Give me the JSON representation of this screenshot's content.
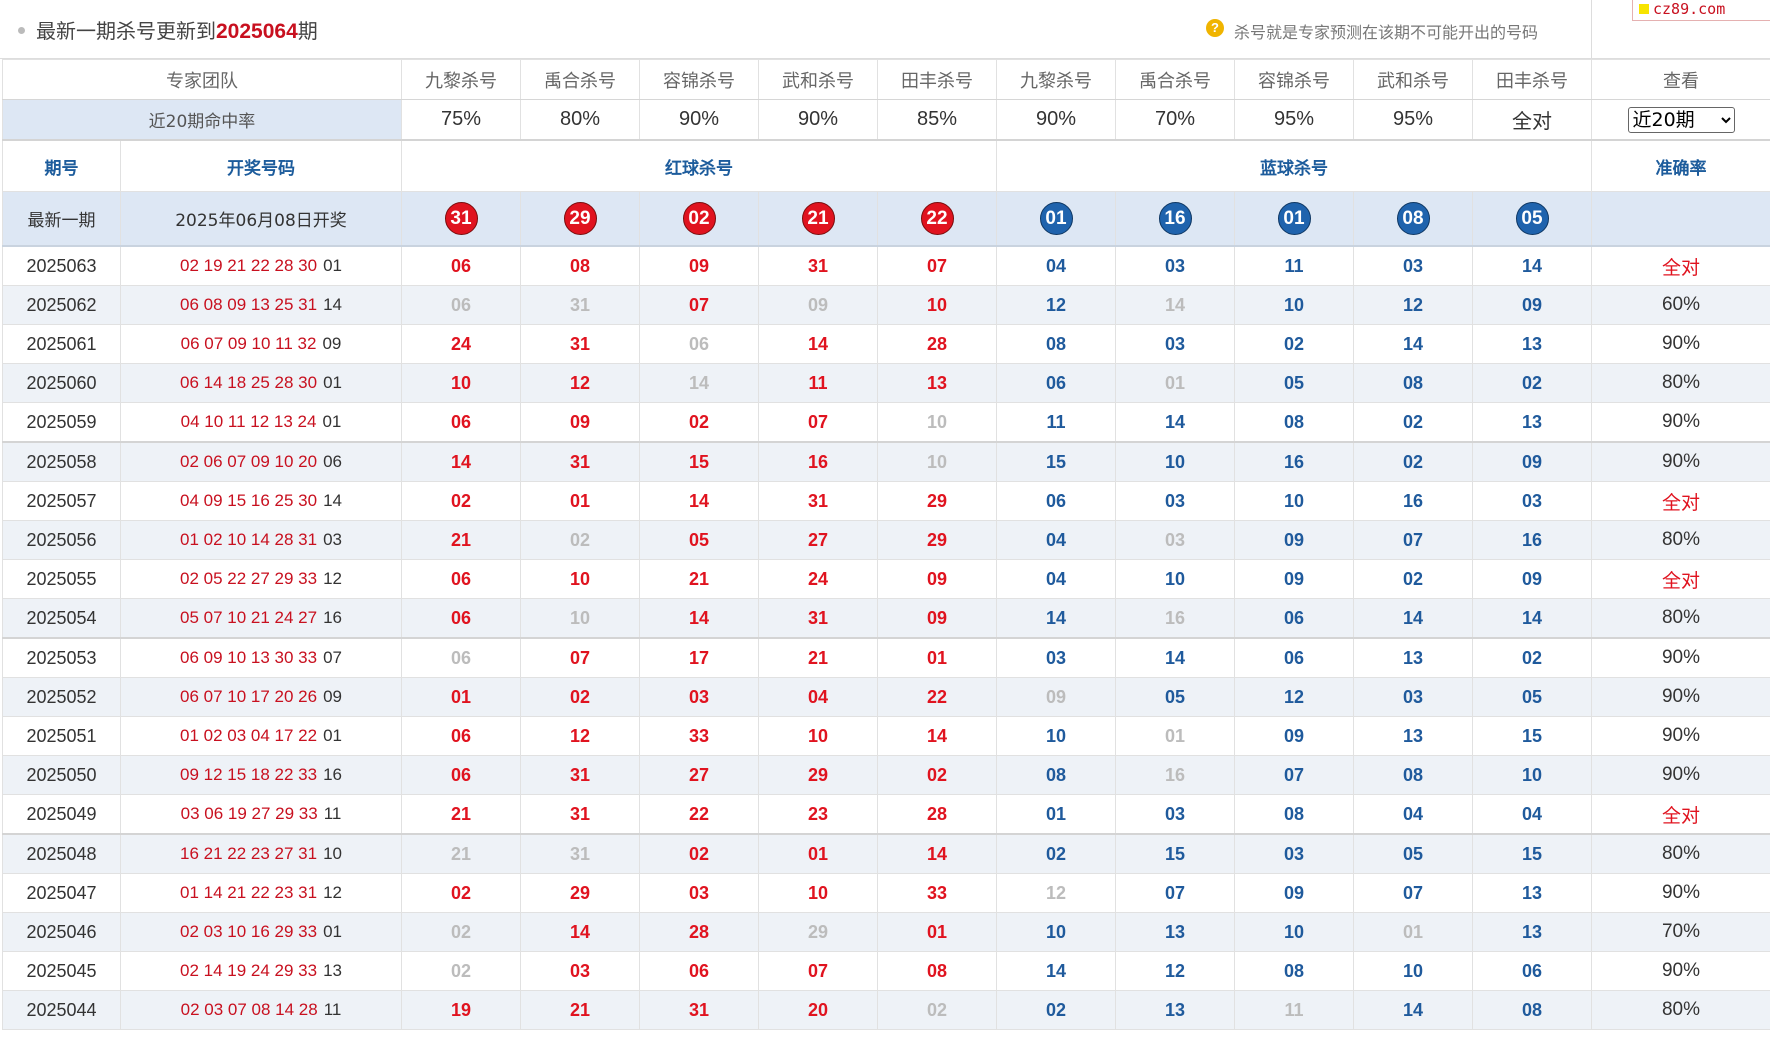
{
  "header": {
    "title_prefix": "最新一期杀号更新到",
    "title_issue": "2025064",
    "title_suffix": "期",
    "hint_icon": "question-circle-icon",
    "hint": "杀号就是专家预测在该期不可能开出的号码",
    "logo": "cz89.com"
  },
  "experts_label": "专家团队",
  "experts": [
    "九黎杀号",
    "禹合杀号",
    "容锦杀号",
    "武和杀号",
    "田丰杀号",
    "九黎杀号",
    "禹合杀号",
    "容锦杀号",
    "武和杀号",
    "田丰杀号"
  ],
  "view_label": "查看",
  "rate_label": "近20期命中率",
  "rates": [
    "75%",
    "80%",
    "90%",
    "90%",
    "85%",
    "90%",
    "70%",
    "95%",
    "95%",
    "全对"
  ],
  "period_select": {
    "value": "近20期",
    "options": [
      "近20期"
    ]
  },
  "columns": {
    "issue": "期号",
    "draw": "开奖号码",
    "red": "红球杀号",
    "blue": "蓝球杀号",
    "accuracy": "准确率"
  },
  "latest": {
    "label": "最新一期",
    "date": "2025年06月08日开奖",
    "red_kills": [
      "31",
      "29",
      "02",
      "21",
      "22"
    ],
    "blue_kills": [
      "01",
      "16",
      "01",
      "08",
      "05"
    ]
  },
  "rows": [
    {
      "issue": "2025063",
      "reds": "02 19 21 22 28 30",
      "blue": "01",
      "kills": [
        "06",
        "08",
        "09",
        "31",
        "07",
        "04",
        "03",
        "11",
        "03",
        "14"
      ],
      "hit": [
        1,
        1,
        1,
        1,
        1,
        1,
        1,
        1,
        1,
        1
      ],
      "accuracy": "全对"
    },
    {
      "issue": "2025062",
      "reds": "06 08 09 13 25 31",
      "blue": "14",
      "kills": [
        "06",
        "31",
        "07",
        "09",
        "10",
        "12",
        "14",
        "10",
        "12",
        "09"
      ],
      "hit": [
        0,
        0,
        1,
        0,
        1,
        1,
        0,
        1,
        1,
        1
      ],
      "accuracy": "60%"
    },
    {
      "issue": "2025061",
      "reds": "06 07 09 10 11 32",
      "blue": "09",
      "kills": [
        "24",
        "31",
        "06",
        "14",
        "28",
        "08",
        "03",
        "02",
        "14",
        "13"
      ],
      "hit": [
        1,
        1,
        0,
        1,
        1,
        1,
        1,
        1,
        1,
        1
      ],
      "accuracy": "90%"
    },
    {
      "issue": "2025060",
      "reds": "06 14 18 25 28 30",
      "blue": "01",
      "kills": [
        "10",
        "12",
        "14",
        "11",
        "13",
        "06",
        "01",
        "05",
        "08",
        "02"
      ],
      "hit": [
        1,
        1,
        0,
        1,
        1,
        1,
        0,
        1,
        1,
        1
      ],
      "accuracy": "80%"
    },
    {
      "issue": "2025059",
      "reds": "04 10 11 12 13 24",
      "blue": "01",
      "kills": [
        "06",
        "09",
        "02",
        "07",
        "10",
        "11",
        "14",
        "08",
        "02",
        "13"
      ],
      "hit": [
        1,
        1,
        1,
        1,
        0,
        1,
        1,
        1,
        1,
        1
      ],
      "accuracy": "90%"
    },
    {
      "issue": "2025058",
      "reds": "02 06 07 09 10 20",
      "blue": "06",
      "kills": [
        "14",
        "31",
        "15",
        "16",
        "10",
        "15",
        "10",
        "16",
        "02",
        "09"
      ],
      "hit": [
        1,
        1,
        1,
        1,
        0,
        1,
        1,
        1,
        1,
        1
      ],
      "accuracy": "90%"
    },
    {
      "issue": "2025057",
      "reds": "04 09 15 16 25 30",
      "blue": "14",
      "kills": [
        "02",
        "01",
        "14",
        "31",
        "29",
        "06",
        "03",
        "10",
        "16",
        "03"
      ],
      "hit": [
        1,
        1,
        1,
        1,
        1,
        1,
        1,
        1,
        1,
        1
      ],
      "accuracy": "全对"
    },
    {
      "issue": "2025056",
      "reds": "01 02 10 14 28 31",
      "blue": "03",
      "kills": [
        "21",
        "02",
        "05",
        "27",
        "29",
        "04",
        "03",
        "09",
        "07",
        "16"
      ],
      "hit": [
        1,
        0,
        1,
        1,
        1,
        1,
        0,
        1,
        1,
        1
      ],
      "accuracy": "80%"
    },
    {
      "issue": "2025055",
      "reds": "02 05 22 27 29 33",
      "blue": "12",
      "kills": [
        "06",
        "10",
        "21",
        "24",
        "09",
        "04",
        "10",
        "09",
        "02",
        "09"
      ],
      "hit": [
        1,
        1,
        1,
        1,
        1,
        1,
        1,
        1,
        1,
        1
      ],
      "accuracy": "全对"
    },
    {
      "issue": "2025054",
      "reds": "05 07 10 21 24 27",
      "blue": "16",
      "kills": [
        "06",
        "10",
        "14",
        "31",
        "09",
        "14",
        "16",
        "06",
        "14",
        "14"
      ],
      "hit": [
        1,
        0,
        1,
        1,
        1,
        1,
        0,
        1,
        1,
        1
      ],
      "accuracy": "80%"
    },
    {
      "issue": "2025053",
      "reds": "06 09 10 13 30 33",
      "blue": "07",
      "kills": [
        "06",
        "07",
        "17",
        "21",
        "01",
        "03",
        "14",
        "06",
        "13",
        "02"
      ],
      "hit": [
        0,
        1,
        1,
        1,
        1,
        1,
        1,
        1,
        1,
        1
      ],
      "accuracy": "90%"
    },
    {
      "issue": "2025052",
      "reds": "06 07 10 17 20 26",
      "blue": "09",
      "kills": [
        "01",
        "02",
        "03",
        "04",
        "22",
        "09",
        "05",
        "12",
        "03",
        "05"
      ],
      "hit": [
        1,
        1,
        1,
        1,
        1,
        0,
        1,
        1,
        1,
        1
      ],
      "accuracy": "90%"
    },
    {
      "issue": "2025051",
      "reds": "01 02 03 04 17 22",
      "blue": "01",
      "kills": [
        "06",
        "12",
        "33",
        "10",
        "14",
        "10",
        "01",
        "09",
        "13",
        "15"
      ],
      "hit": [
        1,
        1,
        1,
        1,
        1,
        1,
        0,
        1,
        1,
        1
      ],
      "accuracy": "90%"
    },
    {
      "issue": "2025050",
      "reds": "09 12 15 18 22 33",
      "blue": "16",
      "kills": [
        "06",
        "31",
        "27",
        "29",
        "02",
        "08",
        "16",
        "07",
        "08",
        "10"
      ],
      "hit": [
        1,
        1,
        1,
        1,
        1,
        1,
        0,
        1,
        1,
        1
      ],
      "accuracy": "90%"
    },
    {
      "issue": "2025049",
      "reds": "03 06 19 27 29 33",
      "blue": "11",
      "kills": [
        "21",
        "31",
        "22",
        "23",
        "28",
        "01",
        "03",
        "08",
        "04",
        "04"
      ],
      "hit": [
        1,
        1,
        1,
        1,
        1,
        1,
        1,
        1,
        1,
        1
      ],
      "accuracy": "全对"
    },
    {
      "issue": "2025048",
      "reds": "16 21 22 23 27 31",
      "blue": "10",
      "kills": [
        "21",
        "31",
        "02",
        "01",
        "14",
        "02",
        "15",
        "03",
        "05",
        "15"
      ],
      "hit": [
        0,
        0,
        1,
        1,
        1,
        1,
        1,
        1,
        1,
        1
      ],
      "accuracy": "80%"
    },
    {
      "issue": "2025047",
      "reds": "01 14 21 22 23 31",
      "blue": "12",
      "kills": [
        "02",
        "29",
        "03",
        "10",
        "33",
        "12",
        "07",
        "09",
        "07",
        "13"
      ],
      "hit": [
        1,
        1,
        1,
        1,
        1,
        0,
        1,
        1,
        1,
        1
      ],
      "accuracy": "90%"
    },
    {
      "issue": "2025046",
      "reds": "02 03 10 16 29 33",
      "blue": "01",
      "kills": [
        "02",
        "14",
        "28",
        "29",
        "01",
        "10",
        "13",
        "10",
        "01",
        "13"
      ],
      "hit": [
        0,
        1,
        1,
        0,
        1,
        1,
        1,
        1,
        0,
        1
      ],
      "accuracy": "70%"
    },
    {
      "issue": "2025045",
      "reds": "02 14 19 24 29 33",
      "blue": "13",
      "kills": [
        "02",
        "03",
        "06",
        "07",
        "08",
        "14",
        "12",
        "08",
        "10",
        "06"
      ],
      "hit": [
        0,
        1,
        1,
        1,
        1,
        1,
        1,
        1,
        1,
        1
      ],
      "accuracy": "90%"
    },
    {
      "issue": "2025044",
      "reds": "02 03 07 08 14 28",
      "blue": "11",
      "kills": [
        "19",
        "21",
        "31",
        "20",
        "02",
        "02",
        "13",
        "11",
        "14",
        "08"
      ],
      "hit": [
        1,
        1,
        1,
        1,
        0,
        1,
        1,
        0,
        1,
        1
      ],
      "accuracy": "80%"
    }
  ]
}
